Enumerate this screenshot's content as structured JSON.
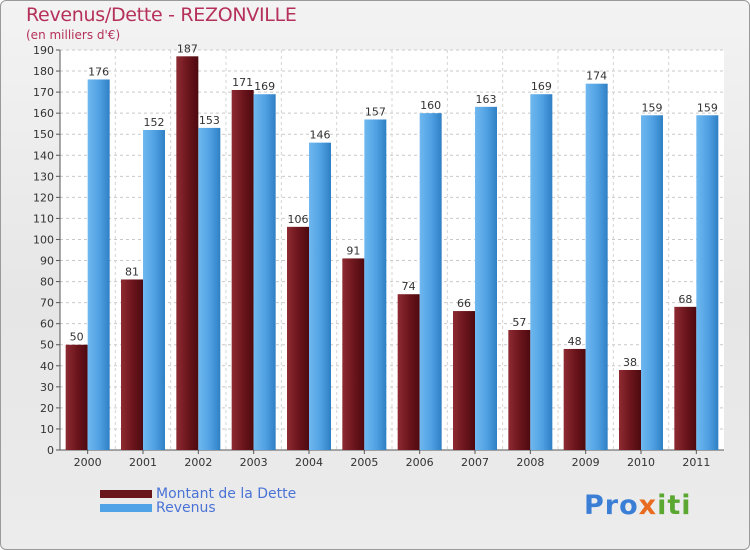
{
  "title": "Revenus/Dette - REZONVILLE",
  "subtitle": "(en milliers d'€)",
  "logo": {
    "part1": "Pro",
    "part2": "x",
    "part3": "iti"
  },
  "chart_data": {
    "type": "bar",
    "categories": [
      "2000",
      "2001",
      "2002",
      "2003",
      "2004",
      "2005",
      "2006",
      "2007",
      "2008",
      "2009",
      "2010",
      "2011"
    ],
    "series": [
      {
        "name": "Montant de la Dette",
        "color": "#7a1a22",
        "values": [
          50,
          81,
          187,
          171,
          106,
          91,
          74,
          66,
          57,
          48,
          38,
          68
        ]
      },
      {
        "name": "Revenus",
        "color": "#4fa3e6",
        "values": [
          176,
          152,
          153,
          169,
          146,
          157,
          160,
          163,
          169,
          174,
          159,
          159
        ]
      }
    ],
    "ylim": [
      0,
      190
    ],
    "ytick_step": 10,
    "grid": true,
    "legend_position": "bottom-left"
  }
}
